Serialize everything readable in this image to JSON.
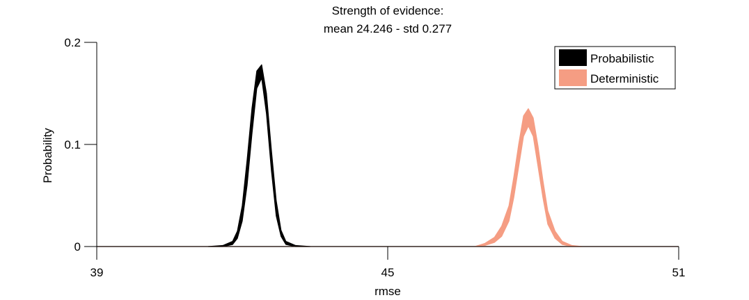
{
  "chart_data": {
    "type": "area",
    "title": "Strength of evidence:",
    "subtitle": "mean 24.246 - std 0.277",
    "xlabel": "rmse",
    "ylabel": "Probability",
    "xlim": [
      39,
      51
    ],
    "ylim": [
      0,
      0.2
    ],
    "x_ticks": [
      39,
      45,
      51
    ],
    "x_tick_labels": [
      "39",
      "45",
      "51"
    ],
    "y_ticks": [
      0,
      0.1,
      0.2
    ],
    "y_tick_labels": [
      "0",
      "0.1",
      "0.2"
    ],
    "grid": false,
    "legend_position": "top-right",
    "series": [
      {
        "name": "Probabilistic",
        "color": "#000000",
        "x": [
          41.3,
          41.6,
          41.8,
          41.9,
          42.0,
          42.1,
          42.2,
          42.3,
          42.4,
          42.5,
          42.6,
          42.7,
          42.8,
          42.9,
          43.1,
          43.4
        ],
        "lower": [
          0,
          0,
          0.002,
          0.008,
          0.025,
          0.06,
          0.11,
          0.155,
          0.165,
          0.13,
          0.075,
          0.03,
          0.01,
          0.002,
          0,
          0
        ],
        "upper": [
          0,
          0.001,
          0.005,
          0.015,
          0.04,
          0.085,
          0.135,
          0.172,
          0.178,
          0.15,
          0.095,
          0.045,
          0.016,
          0.005,
          0.001,
          0
        ]
      },
      {
        "name": "Deterministic",
        "color": "#f59d83",
        "x": [
          46.8,
          47.0,
          47.2,
          47.35,
          47.5,
          47.6,
          47.7,
          47.8,
          47.9,
          48.0,
          48.1,
          48.2,
          48.3,
          48.45,
          48.6,
          48.8,
          49.0
        ],
        "lower": [
          0,
          0.001,
          0.004,
          0.01,
          0.025,
          0.048,
          0.078,
          0.108,
          0.118,
          0.108,
          0.078,
          0.048,
          0.022,
          0.008,
          0.002,
          0,
          0
        ],
        "upper": [
          0,
          0.003,
          0.009,
          0.02,
          0.04,
          0.068,
          0.1,
          0.128,
          0.135,
          0.126,
          0.098,
          0.065,
          0.035,
          0.015,
          0.005,
          0.001,
          0
        ]
      }
    ]
  }
}
